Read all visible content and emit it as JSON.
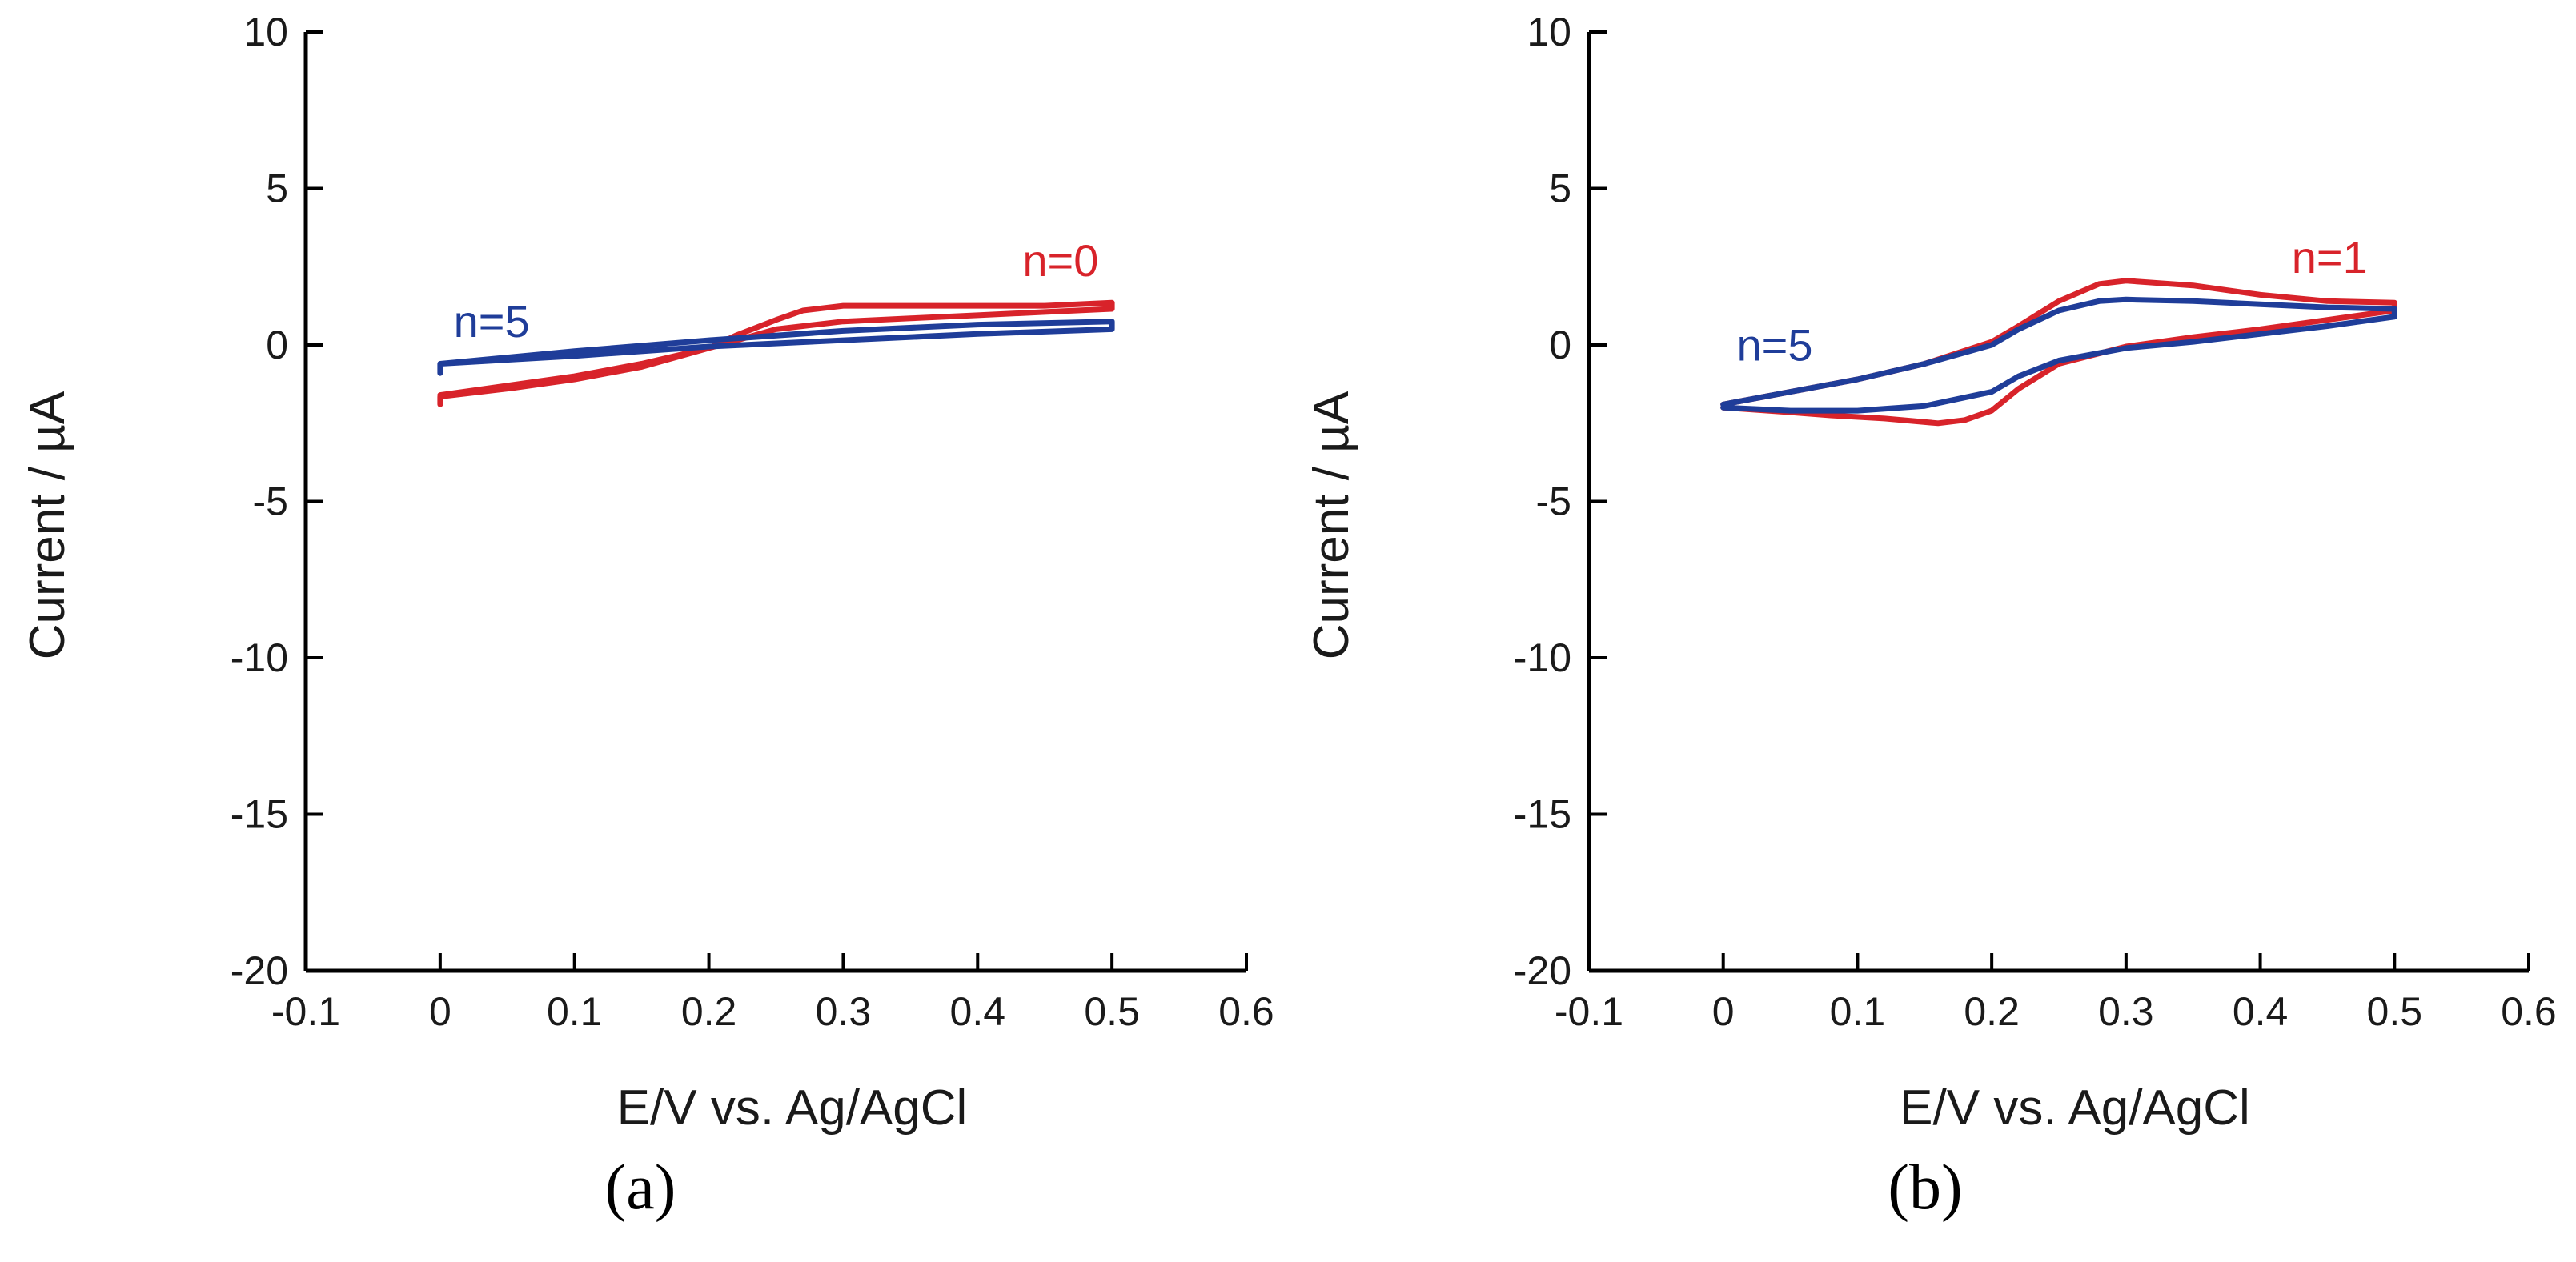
{
  "colors": {
    "red": "#d8232a",
    "blue": "#1f3d99",
    "axis": "#000000"
  },
  "chart_data": [
    {
      "type": "line",
      "panel_label": "(a)",
      "panel_letter": "a",
      "xlabel": "E/V vs. Ag/AgCl",
      "ylabel": "Current / µA",
      "xlim": [
        -0.1,
        0.6
      ],
      "ylim": [
        -20,
        10
      ],
      "xticks": [
        -0.1,
        0,
        0.1,
        0.2,
        0.3,
        0.4,
        0.5,
        0.6
      ],
      "xtick_labels": [
        "-0.1",
        "0",
        "0.1",
        "0.2",
        "0.3",
        "0.4",
        "0.5",
        "0.6"
      ],
      "yticks": [
        10,
        5,
        0,
        -5,
        -10,
        -15,
        -20
      ],
      "ytick_labels": [
        "10",
        "5",
        "0",
        "-5",
        "-10",
        "-15",
        "-20"
      ],
      "series": [
        {
          "name": "n=0",
          "color": "#d8232a",
          "label_anchor": [
            0.49,
            2.2
          ],
          "label_align": "end",
          "x": [
            0.0,
            0.05,
            0.1,
            0.15,
            0.2,
            0.25,
            0.3,
            0.35,
            0.4,
            0.45,
            0.5,
            0.5,
            0.45,
            0.4,
            0.35,
            0.3,
            0.27,
            0.25,
            0.22,
            0.2,
            0.15,
            0.1,
            0.05,
            0.0,
            0.0
          ],
          "y": [
            -1.6,
            -1.3,
            -1.0,
            -0.6,
            -0.1,
            0.5,
            0.75,
            0.85,
            0.95,
            1.05,
            1.15,
            1.35,
            1.25,
            1.25,
            1.25,
            1.25,
            1.1,
            0.8,
            0.3,
            -0.1,
            -0.7,
            -1.1,
            -1.4,
            -1.65,
            -1.9
          ]
        },
        {
          "name": "n=5",
          "color": "#1f3d99",
          "label_anchor": [
            0.01,
            0.25
          ],
          "label_align": "start",
          "x": [
            0.0,
            0.1,
            0.2,
            0.3,
            0.4,
            0.5,
            0.5,
            0.4,
            0.3,
            0.2,
            0.1,
            0.0,
            0.0
          ],
          "y": [
            -0.6,
            -0.35,
            -0.05,
            0.15,
            0.35,
            0.5,
            0.75,
            0.65,
            0.45,
            0.15,
            -0.2,
            -0.6,
            -0.9
          ]
        }
      ]
    },
    {
      "type": "line",
      "panel_label": "(b)",
      "panel_letter": "b",
      "xlabel": "E/V vs. Ag/AgCl",
      "ylabel": "Current / µA",
      "xlim": [
        -0.1,
        0.6
      ],
      "ylim": [
        -20,
        10
      ],
      "xticks": [
        -0.1,
        0,
        0.1,
        0.2,
        0.3,
        0.4,
        0.5,
        0.6
      ],
      "xtick_labels": [
        "-0.1",
        "0",
        "0.1",
        "0.2",
        "0.3",
        "0.4",
        "0.5",
        "0.6"
      ],
      "yticks": [
        10,
        5,
        0,
        -5,
        -10,
        -15,
        -20
      ],
      "ytick_labels": [
        "10",
        "5",
        "0",
        "-5",
        "-10",
        "-15",
        "-20"
      ],
      "series": [
        {
          "name": "n=1",
          "color": "#d8232a",
          "label_anchor": [
            0.48,
            2.3
          ],
          "label_align": "end",
          "x": [
            0.0,
            0.05,
            0.1,
            0.15,
            0.2,
            0.22,
            0.25,
            0.28,
            0.3,
            0.35,
            0.4,
            0.45,
            0.5,
            0.5,
            0.45,
            0.4,
            0.35,
            0.3,
            0.25,
            0.22,
            0.2,
            0.18,
            0.16,
            0.12,
            0.08,
            0.05,
            0.0
          ],
          "y": [
            -1.9,
            -1.5,
            -1.1,
            -0.6,
            0.1,
            0.6,
            1.4,
            1.95,
            2.05,
            1.9,
            1.6,
            1.4,
            1.35,
            1.1,
            0.8,
            0.5,
            0.25,
            -0.05,
            -0.6,
            -1.4,
            -2.1,
            -2.4,
            -2.5,
            -2.35,
            -2.25,
            -2.15,
            -2.0
          ]
        },
        {
          "name": "n=5",
          "color": "#1f3d99",
          "label_anchor": [
            0.01,
            -0.5
          ],
          "label_align": "start",
          "x": [
            0.0,
            0.05,
            0.1,
            0.15,
            0.2,
            0.22,
            0.25,
            0.28,
            0.3,
            0.35,
            0.4,
            0.45,
            0.5,
            0.5,
            0.45,
            0.4,
            0.35,
            0.3,
            0.25,
            0.22,
            0.2,
            0.15,
            0.1,
            0.05,
            0.0
          ],
          "y": [
            -1.9,
            -1.5,
            -1.1,
            -0.6,
            0.0,
            0.5,
            1.1,
            1.4,
            1.45,
            1.4,
            1.3,
            1.2,
            1.15,
            0.9,
            0.6,
            0.35,
            0.1,
            -0.1,
            -0.5,
            -1.0,
            -1.5,
            -1.95,
            -2.1,
            -2.1,
            -2.0
          ]
        }
      ]
    }
  ]
}
